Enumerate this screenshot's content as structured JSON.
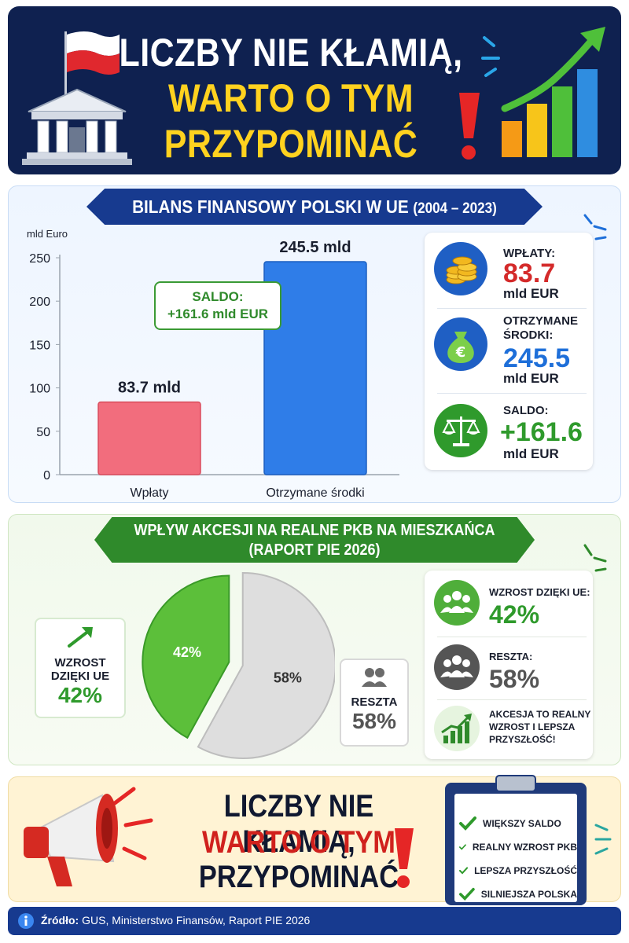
{
  "header": {
    "line1": "LICZBY NIE KŁAMIĄ,",
    "line2": "WARTO O TYM",
    "line3": "PRZYPOMINAĆ"
  },
  "section1": {
    "title": "BILANS FINANSOWY POLSKI W UE",
    "period": "(2004 – 2023)",
    "saldo_label": "SALDO:",
    "saldo_value": "+161.6 mld EUR",
    "cards": [
      {
        "label": "WPŁATY:",
        "value": "83.7",
        "unit": "mld EUR",
        "icon": "coins-icon",
        "color": "#d42a2a"
      },
      {
        "label1": "OTRZYMANE",
        "label2": "ŚRODKI:",
        "value": "245.5",
        "unit": "mld EUR",
        "icon": "money-bag-icon",
        "color": "#1e6fd9"
      },
      {
        "label": "SALDO:",
        "value": "+161.6",
        "unit": "mld EUR",
        "icon": "scales-icon",
        "color": "#2f9a2c"
      }
    ]
  },
  "chart_data": [
    {
      "type": "bar",
      "ylabel": "mld Euro",
      "ylim": [
        0,
        250
      ],
      "yticks": [
        0,
        50,
        100,
        150,
        200,
        250
      ],
      "categories": [
        "Wpłaty",
        "Otrzymane środki"
      ],
      "values": [
        83.7,
        245.5
      ],
      "data_labels": [
        "83.7 mld",
        "245.5 mld"
      ],
      "colors": [
        "#f26d7d",
        "#2f7de8"
      ],
      "grid": false
    },
    {
      "type": "pie",
      "labels": [
        "WZROST DZIĘKI UE",
        "RESZTA"
      ],
      "values": [
        42,
        58
      ],
      "data_labels": [
        "42%",
        "58%"
      ],
      "colors": [
        "#5cbf3a",
        "#dedede"
      ]
    }
  ],
  "section2": {
    "title1": "WPŁYW AKCESJI NA REALNE PKB NA MIESZKAŃCA",
    "title2": "(RAPORT PIE 2026)",
    "left_box": {
      "label1": "WZROST",
      "label2": "DZIĘKI UE",
      "value": "42%"
    },
    "right_callout": {
      "label": "RESZTA",
      "value": "58%"
    },
    "cards": [
      {
        "label": "WZROST DZIĘKI UE:",
        "value": "42%",
        "icon": "group-icon"
      },
      {
        "label": "RESZTA:",
        "value": "58%",
        "icon": "group-icon"
      },
      {
        "line1": "AKCESJA TO REALNY",
        "line2": "WZROST I LEPSZA",
        "line3": "PRZYSZŁOŚĆ!",
        "icon": "growth-chart-icon"
      }
    ]
  },
  "footer": {
    "line1": "LICZBY NIE KŁAMIĄ,",
    "line2": "WARTO O TYM",
    "line3": "PRZYPOMINAĆ",
    "checklist": [
      "WIĘKSZY SALDO",
      "REALNY WZROST PKB",
      "LEPSZA PRZYSZŁOŚĆ",
      "SILNIEJSZA POLSKA"
    ]
  },
  "source": {
    "label": "Źródło:",
    "text": "GUS, Ministerstwo Finansów, Raport PIE 2026"
  }
}
